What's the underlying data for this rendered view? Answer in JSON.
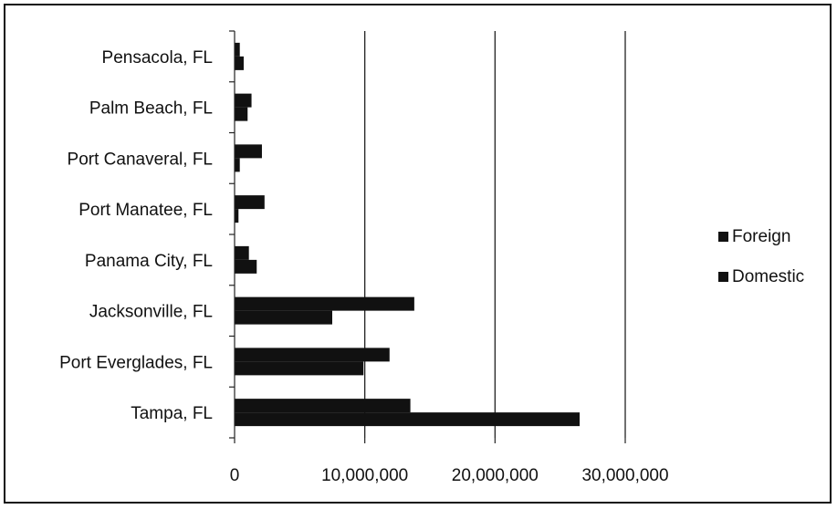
{
  "chart_data": {
    "type": "bar",
    "orientation": "horizontal",
    "title": "",
    "xlabel": "",
    "ylabel": "",
    "categories": [
      "Pensacola, FL",
      "Palm Beach, FL",
      "Port Canaveral, FL",
      "Port Manatee, FL",
      "Panama City, FL",
      "Jacksonville, FL",
      "Port Everglades, FL",
      "Tampa, FL"
    ],
    "series": [
      {
        "name": "Foreign",
        "color": "#111111",
        "values": [
          400000,
          1300000,
          2100000,
          2300000,
          1100000,
          13800000,
          11900000,
          13500000
        ]
      },
      {
        "name": "Domestic",
        "color": "#111111",
        "values": [
          700000,
          1000000,
          400000,
          300000,
          1700000,
          7500000,
          9900000,
          26500000
        ]
      }
    ],
    "xlim": [
      0,
      30000000
    ],
    "x_ticks": [
      0,
      10000000,
      20000000,
      30000000
    ],
    "x_tick_labels": [
      "0",
      "10,000,000",
      "20,000,000",
      "30,000,000"
    ],
    "grid": {
      "vertical": true,
      "horizontal": false
    },
    "legend": {
      "position": "right"
    }
  }
}
